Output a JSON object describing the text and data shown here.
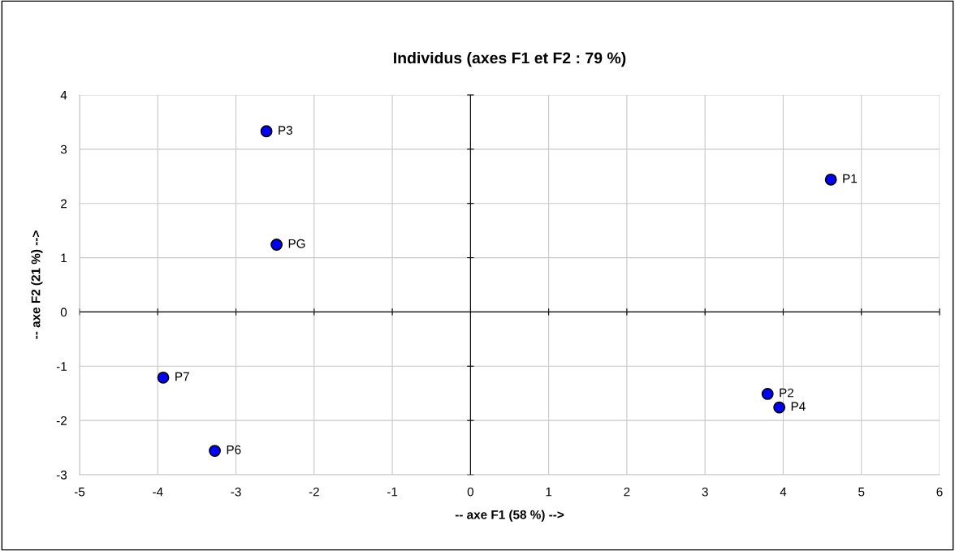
{
  "chart_data": {
    "type": "scatter",
    "title": "Individus (axes F1 et F2 : 79 %)",
    "xlabel": "-- axe F1 (58 %) -->",
    "ylabel": "-- axe F2 (21 %) -->",
    "x": [
      4.61,
      3.8,
      -2.61,
      3.95,
      -3.27,
      -3.93,
      -2.48
    ],
    "series": [
      {
        "color": "#0000ff",
        "values": [
          2.44,
          -1.51,
          3.33,
          -1.76,
          -2.56,
          -1.21,
          1.24
        ]
      }
    ],
    "annotations": [
      {
        "text": "P1",
        "x": 4.61,
        "y": 2.44
      },
      {
        "text": "P2",
        "x": 3.8,
        "y": -1.51
      },
      {
        "text": "P3",
        "x": -2.61,
        "y": 3.33
      },
      {
        "text": "P4",
        "x": 3.95,
        "y": -1.76
      },
      {
        "text": "P6",
        "x": -3.27,
        "y": -2.56
      },
      {
        "text": "P7",
        "x": -3.93,
        "y": -1.21
      },
      {
        "text": "PG",
        "x": -2.48,
        "y": 1.24
      }
    ],
    "xlim": [
      -5,
      6
    ],
    "ylim": [
      -3,
      4
    ],
    "xticks": [
      -5,
      -4,
      -3,
      -2,
      -1,
      0,
      1,
      2,
      3,
      4,
      5,
      6
    ],
    "yticks": [
      -3,
      -2,
      -1,
      0,
      1,
      2,
      3,
      4
    ],
    "grid": true,
    "marker": "circle"
  }
}
